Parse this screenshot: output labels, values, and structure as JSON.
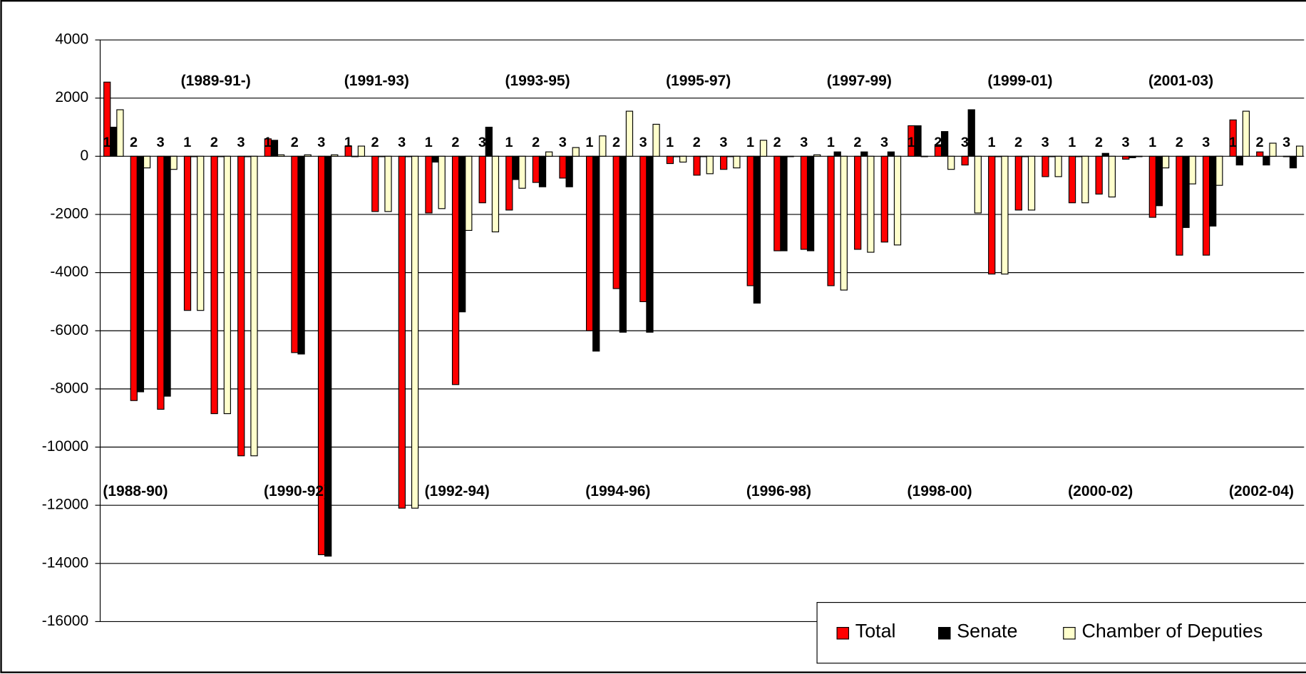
{
  "chart_data": {
    "type": "bar",
    "categories": [
      "1",
      "2",
      "3",
      "1",
      "2",
      "3",
      "1",
      "2",
      "3",
      "1",
      "2",
      "3",
      "1",
      "2",
      "3",
      "1",
      "2",
      "3",
      "1",
      "2",
      "3",
      "1",
      "2",
      "3",
      "1",
      "2",
      "3",
      "1",
      "2",
      "3",
      "1",
      "2",
      "3",
      "1",
      "2",
      "3",
      "1",
      "2",
      "3",
      "1",
      "2",
      "3",
      "1",
      "2",
      "3"
    ],
    "group_labels": [
      "(1988-90)",
      "(1989-91-)",
      "(1990-92)",
      "(1991-93)",
      "(1992-94)",
      "(1993-95)",
      "(1994-96)",
      "(1995-97)",
      "(1996-98)",
      "(1997-99)",
      "(1998-00)",
      "(1999-01)",
      "(2000-02)",
      "(2001-03)",
      "(2002-04)"
    ],
    "series": [
      {
        "name": "Total",
        "color": "#ff0000",
        "values": [
          2550,
          -8400,
          -8700,
          -5300,
          -8850,
          -10300,
          600,
          -6750,
          -13700,
          350,
          -1900,
          -12100,
          -1950,
          -7850,
          -1600,
          -1850,
          -900,
          -750,
          -6000,
          -4550,
          -5000,
          -250,
          -650,
          -450,
          -4450,
          -3250,
          -3200,
          -4450,
          -3200,
          -2950,
          1050,
          400,
          -300,
          -4050,
          -1850,
          -700,
          -1600,
          -1300,
          -100,
          -2100,
          -3400,
          -3400,
          1250,
          150,
          0
        ]
      },
      {
        "name": "Senate",
        "color": "#000000",
        "values": [
          1000,
          -8100,
          -8250,
          0,
          0,
          0,
          550,
          -6800,
          -13750,
          0,
          0,
          0,
          -200,
          -5350,
          1000,
          -800,
          -1050,
          -1050,
          -6700,
          -6050,
          -6050,
          0,
          0,
          0,
          -5050,
          -3250,
          -3250,
          150,
          150,
          150,
          1050,
          850,
          1600,
          0,
          0,
          0,
          0,
          100,
          -50,
          -1700,
          -2450,
          -2400,
          -300,
          -300,
          -400
        ]
      },
      {
        "name": "Chamber of Deputies",
        "color": "#ffffcc",
        "values": [
          1600,
          -400,
          -450,
          -5300,
          -8850,
          -10300,
          50,
          50,
          50,
          350,
          -1900,
          -12100,
          -1800,
          -2550,
          -2600,
          -1100,
          150,
          300,
          700,
          1550,
          1100,
          -200,
          -600,
          -400,
          550,
          0,
          50,
          -4600,
          -3300,
          -3050,
          0,
          -450,
          -1950,
          -4050,
          -1850,
          -700,
          -1600,
          -1400,
          0,
          -400,
          -950,
          -1000,
          1550,
          450,
          350
        ]
      }
    ],
    "ylim": [
      -16000,
      4000
    ],
    "yticks": [
      -16000,
      -14000,
      -12000,
      -10000,
      -8000,
      -6000,
      -4000,
      -2000,
      0,
      2000,
      4000
    ],
    "grid": true,
    "legend": "bottom-right"
  }
}
